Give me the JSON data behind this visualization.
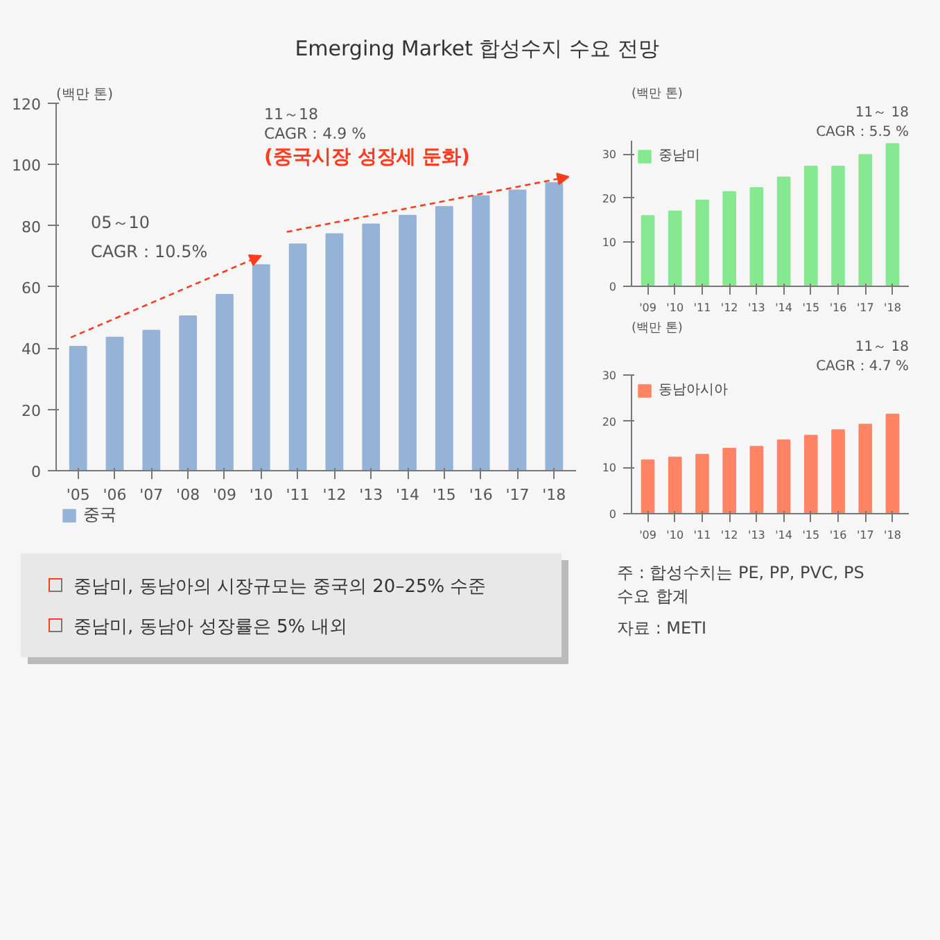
{
  "chart_data": [
    {
      "type": "bar",
      "title": "Emerging Market 합성수지 수요 전망",
      "ylabel": "(백만 톤)",
      "categories": [
        "'05",
        "'06",
        "'07",
        "'08",
        "'09",
        "'10",
        "'11",
        "'12",
        "'13",
        "'14",
        "'15",
        "'16",
        "'17",
        "'18"
      ],
      "series": [
        {
          "name": "중국",
          "color": "#95b3d7",
          "values": [
            40.5,
            43.5,
            45.8,
            50.5,
            57.5,
            67.2,
            74,
            77.3,
            80.5,
            83.3,
            86.2,
            89.7,
            91.6,
            94
          ]
        }
      ],
      "ylim": [
        0,
        120
      ],
      "yticks": [
        0,
        20,
        40,
        60,
        80,
        100,
        120
      ],
      "grid": false,
      "legend": "bottom left",
      "annotations": [
        "05～10",
        "CAGR：10.5%",
        "11～18",
        "CAGR：4.9 %",
        "(중국시장 성장세 둔화)"
      ]
    },
    {
      "type": "bar",
      "ylabel": "(백만 톤)",
      "categories": [
        "'09",
        "'10",
        "'11",
        "'12",
        "'13",
        "'14",
        "'15",
        "'16",
        "'17",
        "'18"
      ],
      "series": [
        {
          "name": "중남미",
          "color": "#86e891",
          "values": [
            16,
            17,
            19.5,
            21.4,
            22.3,
            24.7,
            27.2,
            27.2,
            29.8,
            32.3
          ]
        }
      ],
      "ylim": [
        0,
        33
      ],
      "yticks": [
        0,
        10,
        20,
        30
      ],
      "grid": false,
      "legend": "top",
      "annotations": [
        "11～ 18",
        "CAGR：5.5 %"
      ]
    },
    {
      "type": "bar",
      "ylabel": "(백만 톤)",
      "categories": [
        "'09",
        "'10",
        "'11",
        "'12",
        "'13",
        "'14",
        "'15",
        "'16",
        "'17",
        "'18"
      ],
      "series": [
        {
          "name": "동남아시아",
          "color": "#ff8466",
          "values": [
            11.6,
            12.2,
            12.8,
            14.1,
            14.5,
            15.9,
            16.9,
            18.1,
            19.3,
            21.5
          ]
        }
      ],
      "ylim": [
        0,
        30
      ],
      "yticks": [
        0,
        10,
        20,
        30
      ],
      "grid": false,
      "legend": "top",
      "annotations": [
        "11～ 18",
        "CAGR：4.7 %"
      ]
    },
    {
      "type": "other",
      "annotations": [
        "중남미, 동남아의 시장규모는 중국의 20–25% 수준",
        "중남미, 동남아 성장률은 5% 내외",
        "주 : 합성수치는 PE, PP, PVC, PS 수요 합계",
        "자료 : METI"
      ]
    }
  ]
}
